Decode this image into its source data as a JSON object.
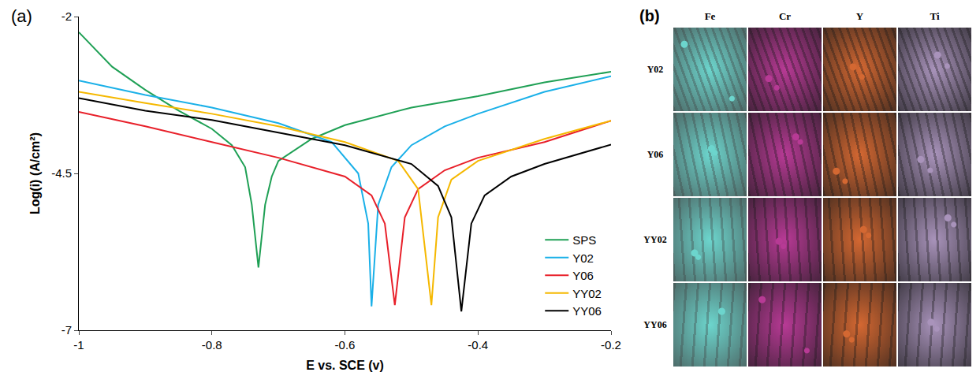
{
  "panel_labels": [
    "(a)",
    "(b)"
  ],
  "chart_data": {
    "type": "line",
    "xlabel": "E vs. SCE (v)",
    "ylabel": "Log(i) (A/cm²)",
    "xlim": [
      -1,
      -0.2
    ],
    "xticks": [
      -1,
      -0.8,
      -0.6,
      -0.4,
      -0.2
    ],
    "ylim": [
      -7,
      -2
    ],
    "yticks": [
      -7,
      -4.5,
      -2
    ],
    "grid": false,
    "legend": "lower right",
    "series": [
      {
        "name": "SPS",
        "color": "#1fa055",
        "x": [
          -1,
          -0.95,
          -0.9,
          -0.85,
          -0.8,
          -0.77,
          -0.75,
          -0.74,
          -0.73,
          -0.72,
          -0.71,
          -0.7,
          -0.65,
          -0.6,
          -0.5,
          -0.4,
          -0.3,
          -0.2
        ],
        "values": [
          -2.25,
          -2.8,
          -3.17,
          -3.5,
          -3.79,
          -4.05,
          -4.4,
          -5.0,
          -6.0,
          -5.0,
          -4.55,
          -4.3,
          -3.95,
          -3.73,
          -3.45,
          -3.27,
          -3.05,
          -2.88
        ]
      },
      {
        "name": "Y02",
        "color": "#1ab0e8",
        "x": [
          -1,
          -0.9,
          -0.8,
          -0.7,
          -0.62,
          -0.58,
          -0.565,
          -0.56,
          -0.55,
          -0.53,
          -0.5,
          -0.45,
          -0.4,
          -0.3,
          -0.2
        ],
        "values": [
          -3.02,
          -3.25,
          -3.45,
          -3.7,
          -4.0,
          -4.5,
          -5.3,
          -6.62,
          -5.0,
          -4.4,
          -4.05,
          -3.75,
          -3.55,
          -3.2,
          -2.95
        ]
      },
      {
        "name": "Y06",
        "color": "#e8202a",
        "x": [
          -1,
          -0.9,
          -0.8,
          -0.7,
          -0.6,
          -0.56,
          -0.54,
          -0.525,
          -0.51,
          -0.49,
          -0.45,
          -0.4,
          -0.3,
          -0.2
        ],
        "values": [
          -3.52,
          -3.75,
          -4.0,
          -4.25,
          -4.55,
          -4.85,
          -5.3,
          -6.6,
          -5.2,
          -4.75,
          -4.45,
          -4.25,
          -4.0,
          -3.66
        ]
      },
      {
        "name": "YY02",
        "color": "#f5b800",
        "x": [
          -1,
          -0.9,
          -0.8,
          -0.7,
          -0.6,
          -0.52,
          -0.49,
          -0.47,
          -0.46,
          -0.44,
          -0.4,
          -0.3,
          -0.2
        ],
        "values": [
          -3.2,
          -3.38,
          -3.55,
          -3.75,
          -4.0,
          -4.3,
          -4.75,
          -6.6,
          -5.2,
          -4.6,
          -4.3,
          -3.95,
          -3.66
        ]
      },
      {
        "name": "YY06",
        "color": "#000000",
        "x": [
          -1,
          -0.9,
          -0.8,
          -0.7,
          -0.6,
          -0.5,
          -0.46,
          -0.44,
          -0.425,
          -0.41,
          -0.39,
          -0.35,
          -0.3,
          -0.2
        ],
        "values": [
          -3.3,
          -3.5,
          -3.65,
          -3.85,
          -4.05,
          -4.35,
          -4.7,
          -5.2,
          -6.7,
          -5.3,
          -4.85,
          -4.55,
          -4.35,
          -4.04
        ]
      }
    ]
  },
  "maps": {
    "columns": [
      "Fe",
      "Cr",
      "Y",
      "Ti"
    ],
    "rows": [
      "Y02",
      "Y06",
      "YY02",
      "YY06"
    ],
    "colors": [
      "#3cc8bd",
      "#b0258a",
      "#d0581c",
      "#a088b4"
    ]
  }
}
